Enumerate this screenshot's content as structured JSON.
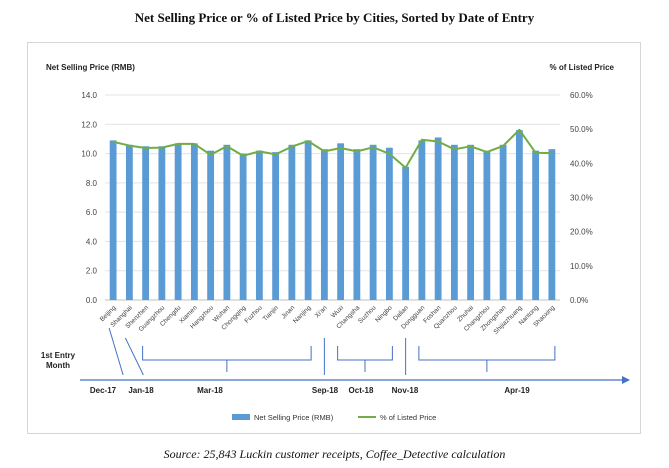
{
  "chart_data": {
    "type": "bar",
    "title": "Net Selling Price or % of Listed Price by Cities, Sorted by Date of Entry",
    "ylabel": "Net Selling Price (RMB)",
    "y2label": "% of Listed Price",
    "ylim": [
      0,
      14
    ],
    "y2lim": [
      0,
      60
    ],
    "yticks": [
      "0.0",
      "2.0",
      "4.0",
      "6.0",
      "8.0",
      "10.0",
      "12.0",
      "14.0"
    ],
    "y2ticks": [
      "0.0%",
      "10.0%",
      "20.0%",
      "30.0%",
      "40.0%",
      "50.0%",
      "60.0%"
    ],
    "grid": true,
    "legend_position": "bottom",
    "categories": [
      "Beijing",
      "Shanghai",
      "Shenzhen",
      "Guangzhou",
      "Chengdu",
      "Xiamen",
      "Hangzhou",
      "Wuhan",
      "Chongqing",
      "Fuzhou",
      "Tianjin",
      "Jinan",
      "Nanjing",
      "Xi'an",
      "Wuxi",
      "Changsha",
      "Suzhou",
      "Ningbo",
      "Dalian",
      "Dongguan",
      "Foshan",
      "Quanzhou",
      "Zhuhai",
      "Changzhou",
      "Zhongshan",
      "Shijiazhuang",
      "Nantong",
      "Shaoxing"
    ],
    "series": [
      {
        "name": "Net Selling Price (RMB)",
        "type": "bar",
        "color": "#5b9bd5",
        "axis": "left",
        "values": [
          10.9,
          10.6,
          10.5,
          10.5,
          10.7,
          10.7,
          10.2,
          10.6,
          10.0,
          10.2,
          10.1,
          10.6,
          10.9,
          10.3,
          10.7,
          10.3,
          10.6,
          10.4,
          9.1,
          10.9,
          11.1,
          10.6,
          10.6,
          10.2,
          10.6,
          11.6,
          10.2,
          10.3
        ]
      },
      {
        "name": "% of Listed Price",
        "type": "line",
        "color": "#70ad47",
        "axis": "right",
        "values": [
          46.3,
          45.2,
          44.5,
          44.6,
          45.7,
          45.7,
          42.5,
          45.0,
          42.2,
          43.5,
          42.6,
          44.9,
          46.5,
          43.5,
          44.5,
          43.5,
          44.7,
          42.8,
          38.7,
          46.9,
          46.4,
          44.1,
          45.0,
          43.3,
          45.1,
          49.8,
          43.1,
          43.0
        ]
      }
    ],
    "entry_timeline": {
      "label_line1": "1st Entry",
      "label_line2": "Month",
      "months": [
        "Dec-17",
        "Jan-18",
        "Mar-18",
        "Sep-18",
        "Oct-18",
        "Nov-18",
        "Apr-19"
      ]
    }
  },
  "source_note": "Source: 25,843 Luckin customer receipts, Coffee_Detective calculation"
}
